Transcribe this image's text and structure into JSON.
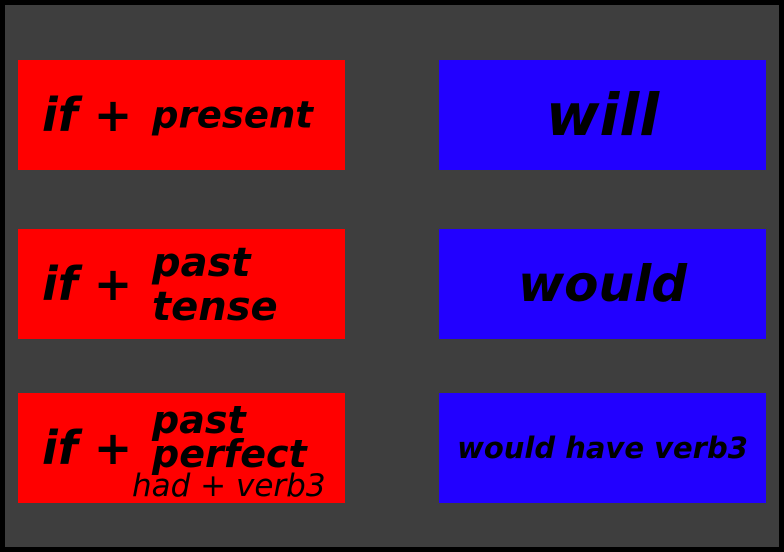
{
  "rows": [
    {
      "condition_if": "if +",
      "condition_line1": "present",
      "result": "will"
    },
    {
      "condition_if": "if +",
      "condition_line1": "past",
      "condition_line2": "tense",
      "result": "would"
    },
    {
      "condition_if": "if +",
      "condition_line1": "past",
      "condition_line2": "perfect",
      "condition_note": "had + verb3",
      "result": "would have verb3"
    }
  ],
  "colors": {
    "background": "#3e3e3e",
    "condition_box": "#ff0000",
    "result_box": "#2200ff",
    "text": "#000000"
  }
}
